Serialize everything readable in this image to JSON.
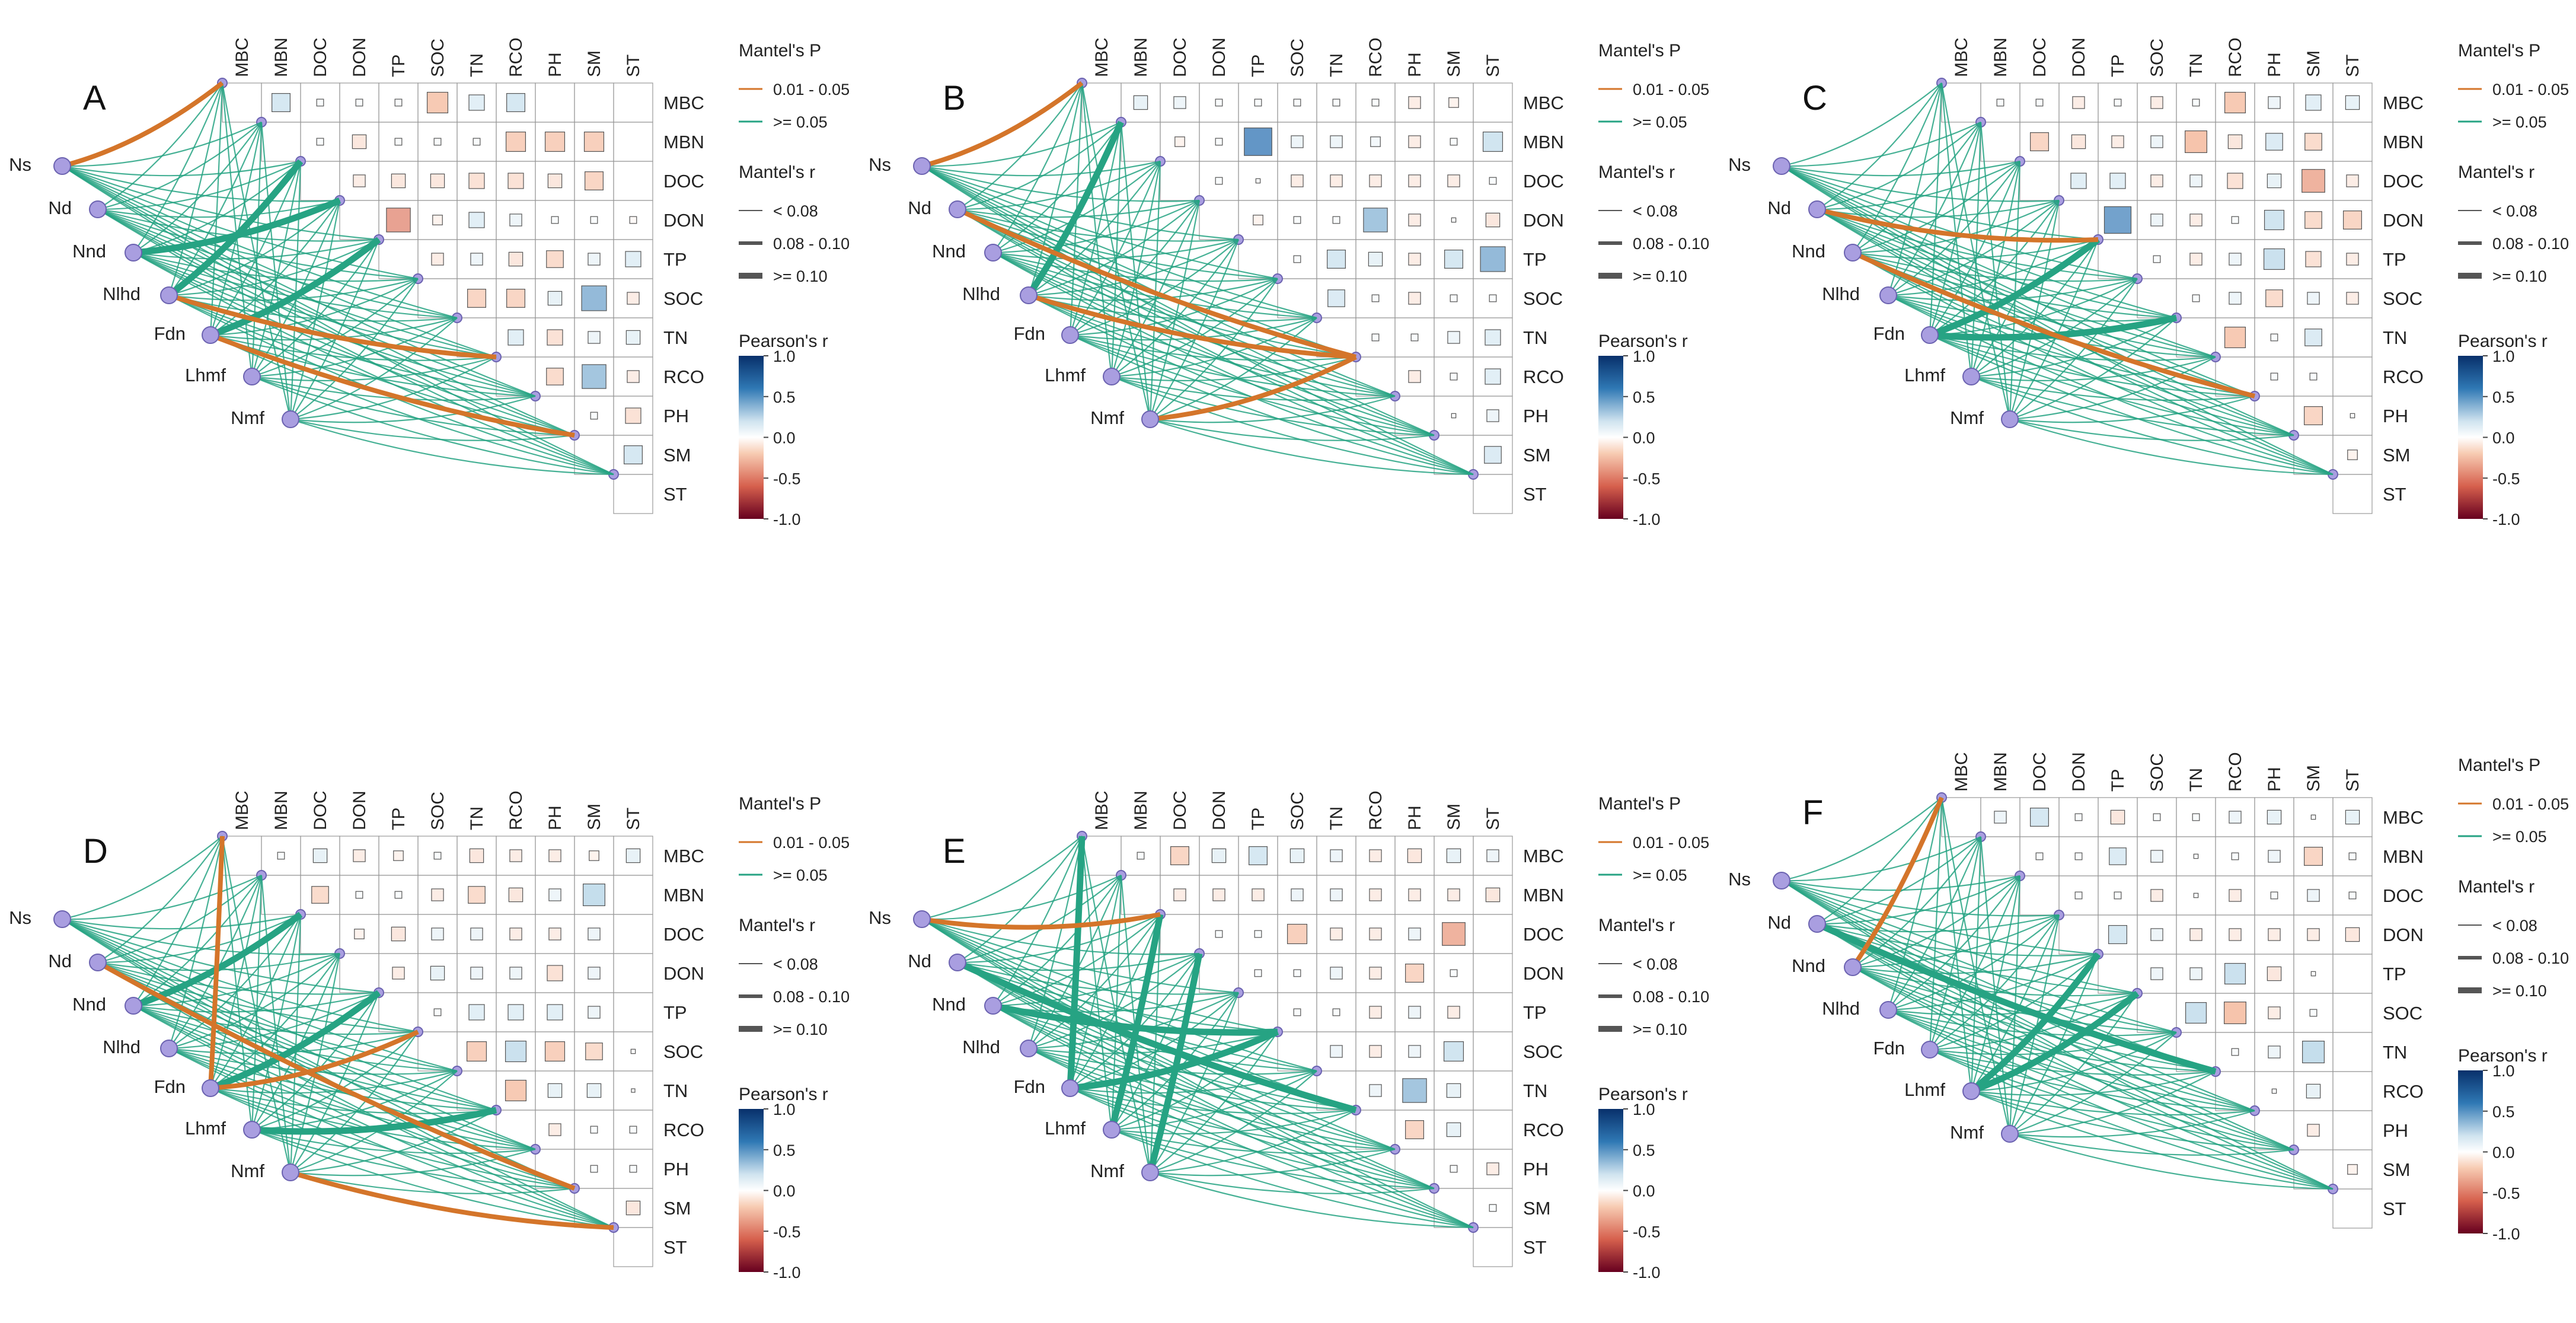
{
  "figure": {
    "type": "mantel-test-correlation-heatmap",
    "panel_count": 6
  },
  "colors": {
    "sig_low_p": "#d4752a",
    "sig_high_p": "#26a383",
    "cell_border": "#999999",
    "node_fill": "#a99ee0",
    "node_stroke": "#6b62b0",
    "text": "#222222"
  },
  "legend": {
    "mantel_p_title": "Mantel's P",
    "mantel_p_items": [
      "0.01 - 0.05",
      ">= 0.05"
    ],
    "mantel_r_title": "Mantel's r",
    "mantel_r_items": [
      "< 0.08",
      "0.08 - 0.10",
      ">= 0.10"
    ],
    "pearson_title": "Pearson's r",
    "pearson_ticks": [
      "1.0",
      "0.5",
      "0.0",
      "-0.5",
      "-1.0"
    ]
  },
  "chart_data": [
    {
      "type": "heatmap",
      "panel": "A",
      "variables": [
        "MBC",
        "MBN",
        "DOC",
        "DON",
        "TP",
        "SOC",
        "TN",
        "RCO",
        "PH",
        "SM",
        "ST"
      ],
      "groups": [
        "Ns",
        "Nd",
        "Nnd",
        "Nlhd",
        "Fdn",
        "Lhmf",
        "Nmf"
      ],
      "mantel_p_range_legend": [
        "0.01 - 0.05",
        ">= 0.05"
      ],
      "mantel_r_range_legend": [
        "< 0.08",
        "0.08 - 0.10",
        ">= 0.10"
      ],
      "pearson_range": [
        -1.0,
        1.0
      ],
      "pearson_matrix": [
        [
          0.35,
          0.05,
          0.05,
          0.05,
          -0.45,
          0.25,
          0.35
        ],
        [
          0.05,
          -0.2,
          0.05,
          0.05,
          0.05,
          -0.4,
          -0.4,
          -0.4
        ],
        [
          -0.15,
          -0.2,
          -0.2,
          -0.25,
          -0.25,
          -0.2,
          -0.35
        ],
        [
          -0.6,
          -0.1,
          0.25,
          0.15,
          0.05,
          0.05,
          -0.05
        ],
        [
          -0.15,
          0.15,
          -0.2,
          -0.3,
          0.15,
          0.25,
          -0.2
        ],
        [
          -0.35,
          -0.35,
          0.2,
          0.65,
          -0.15
        ],
        [
          0.25,
          -0.25,
          0.15,
          0.2
        ],
        [
          -0.3,
          0.6,
          -0.15
        ],
        [
          0.05,
          -0.25
        ],
        [
          0.35
        ],
        []
      ],
      "significant_links": [
        {
          "from": "Ns",
          "to": "MBC"
        },
        {
          "from": "Nlhd",
          "to": "RCO"
        },
        {
          "from": "Fdn",
          "to": "SM"
        }
      ],
      "thick_links": [
        {
          "from": "Nnd",
          "to": "DON"
        },
        {
          "from": "Nlhd",
          "to": "DOC"
        },
        {
          "from": "Fdn",
          "to": "TP"
        }
      ]
    },
    {
      "type": "heatmap",
      "panel": "B",
      "variables": [
        "MBC",
        "MBN",
        "DOC",
        "DON",
        "TP",
        "SOC",
        "TN",
        "RCO",
        "PH",
        "SM",
        "ST"
      ],
      "groups": [
        "Ns",
        "Nd",
        "Nnd",
        "Nlhd",
        "Fdn",
        "Lhmf",
        "Nmf"
      ],
      "mantel_p_range_legend": [
        "0.01 - 0.05",
        ">= 0.05"
      ],
      "mantel_r_range_legend": [
        "< 0.08",
        "0.08 - 0.10",
        ">= 0.10"
      ],
      "pearson_range": [
        -1.0,
        1.0
      ],
      "pearson_matrix": [
        [
          0.2,
          0.15,
          0.05,
          0.05,
          0.05,
          0.05,
          0.05,
          -0.15,
          -0.1
        ],
        [
          -0.1,
          0.05,
          0.8,
          0.15,
          0.15,
          0.1,
          -0.15,
          0.05,
          0.4
        ],
        [
          0.05,
          0.02,
          -0.15,
          -0.15,
          -0.15,
          -0.15,
          -0.15,
          0.05
        ],
        [
          -0.1,
          0.05,
          0.05,
          0.6,
          -0.15,
          0.02,
          -0.2
        ],
        [
          0.05,
          0.35,
          0.2,
          -0.15,
          0.35,
          0.65
        ],
        [
          0.3,
          0.05,
          -0.15,
          0.05,
          0.05
        ],
        [
          0.05,
          0.05,
          0.15,
          0.25
        ],
        [
          -0.15,
          0.05,
          0.25
        ],
        [
          0.02,
          0.15
        ],
        [
          0.3
        ],
        []
      ],
      "significant_links": [
        {
          "from": "Ns",
          "to": "MBC"
        },
        {
          "from": "Nd",
          "to": "RCO"
        },
        {
          "from": "Nlhd",
          "to": "RCO"
        },
        {
          "from": "Nmf",
          "to": "RCO"
        }
      ],
      "thick_links": [
        {
          "from": "Nlhd",
          "to": "MBN"
        }
      ]
    },
    {
      "type": "heatmap",
      "panel": "C",
      "variables": [
        "MBC",
        "MBN",
        "DOC",
        "DON",
        "TP",
        "SOC",
        "TN",
        "RCO",
        "PH",
        "SM",
        "ST"
      ],
      "groups": [
        "Ns",
        "Nd",
        "Nnd",
        "Nlhd",
        "Fdn",
        "Lhmf",
        "Nmf"
      ],
      "mantel_p_range_legend": [
        "0.01 - 0.05",
        ">= 0.05"
      ],
      "mantel_r_range_legend": [
        "< 0.08",
        "0.08 - 0.10",
        ">= 0.10"
      ],
      "pearson_range": [
        -1.0,
        1.0
      ],
      "pearson_matrix": [
        [
          0.05,
          0.05,
          -0.15,
          0.05,
          -0.15,
          0.05,
          -0.45,
          0.15,
          0.25,
          0.2
        ],
        [
          -0.35,
          -0.2,
          -0.15,
          0.15,
          -0.5,
          -0.2,
          0.3,
          -0.3
        ],
        [
          0.25,
          0.25,
          -0.15,
          0.15,
          -0.25,
          0.2,
          -0.55,
          -0.15
        ],
        [
          0.75,
          0.15,
          -0.15,
          0.05,
          0.4,
          -0.3,
          -0.35
        ],
        [
          0.05,
          -0.15,
          0.15,
          0.45,
          -0.25,
          -0.15
        ],
        [
          0.05,
          0.15,
          -0.3,
          0.15,
          -0.15
        ],
        [
          -0.45,
          0.05,
          0.3
        ],
        [
          0.05,
          0.05
        ],
        [
          -0.35,
          0.02
        ],
        [
          -0.1
        ],
        []
      ],
      "significant_links": [
        {
          "from": "Nd",
          "to": "TP"
        },
        {
          "from": "Nnd",
          "to": "PH"
        }
      ],
      "thick_links": [
        {
          "from": "Fdn",
          "to": "TP"
        },
        {
          "from": "Fdn",
          "to": "TN"
        }
      ]
    },
    {
      "type": "heatmap",
      "panel": "D",
      "variables": [
        "MBC",
        "MBN",
        "DOC",
        "DON",
        "TP",
        "SOC",
        "TN",
        "RCO",
        "PH",
        "SM",
        "ST"
      ],
      "groups": [
        "Ns",
        "Nd",
        "Nnd",
        "Nlhd",
        "Fdn",
        "Lhmf",
        "Nmf"
      ],
      "mantel_p_range_legend": [
        "0.01 - 0.05",
        ">= 0.05"
      ],
      "mantel_r_range_legend": [
        "< 0.08",
        "0.08 - 0.10",
        ">= 0.10"
      ],
      "pearson_range": [
        -1.0,
        1.0
      ],
      "pearson_matrix": [
        [
          0.05,
          0.2,
          -0.15,
          -0.1,
          0.05,
          -0.2,
          -0.15,
          -0.15,
          -0.1,
          0.2
        ],
        [
          -0.3,
          0.05,
          0.05,
          -0.15,
          -0.3,
          -0.2,
          0.15,
          0.5
        ],
        [
          -0.1,
          -0.2,
          0.15,
          0.15,
          -0.15,
          -0.15,
          0.15
        ],
        [
          -0.15,
          0.2,
          0.15,
          0.15,
          -0.25,
          0.15
        ],
        [
          0.05,
          0.25,
          0.25,
          0.25,
          0.15
        ],
        [
          -0.4,
          0.45,
          -0.4,
          -0.3,
          0.02
        ],
        [
          -0.45,
          0.2,
          0.2,
          0.0
        ],
        [
          -0.15,
          0.05,
          0.05
        ],
        [
          0.05,
          0.05
        ],
        [
          -0.2
        ],
        []
      ],
      "significant_links": [
        {
          "from": "Nd",
          "to": "SM"
        },
        {
          "from": "Fdn",
          "to": "MBC"
        },
        {
          "from": "Fdn",
          "to": "SOC"
        },
        {
          "from": "Nmf",
          "to": "ST"
        }
      ],
      "thick_links": [
        {
          "from": "Nnd",
          "to": "DOC"
        },
        {
          "from": "Fdn",
          "to": "TP"
        },
        {
          "from": "Lhmf",
          "to": "RCO"
        }
      ]
    },
    {
      "type": "heatmap",
      "panel": "E",
      "variables": [
        "MBC",
        "MBN",
        "DOC",
        "DON",
        "TP",
        "SOC",
        "TN",
        "RCO",
        "PH",
        "SM",
        "ST"
      ],
      "groups": [
        "Ns",
        "Nd",
        "Nnd",
        "Nlhd",
        "Fdn",
        "Lhmf",
        "Nmf"
      ],
      "mantel_p_range_legend": [
        "0.01 - 0.05",
        ">= 0.05"
      ],
      "mantel_r_range_legend": [
        "< 0.08",
        "0.08 - 0.10",
        ">= 0.10"
      ],
      "pearson_range": [
        -1.0,
        1.0
      ],
      "pearson_matrix": [
        [
          0.05,
          -0.35,
          0.2,
          0.35,
          0.2,
          0.15,
          -0.15,
          -0.2,
          0.2,
          0.15
        ],
        [
          -0.15,
          -0.15,
          -0.15,
          0.15,
          0.15,
          -0.15,
          -0.15,
          -0.15,
          -0.2
        ],
        [
          0.05,
          0.05,
          -0.4,
          -0.15,
          -0.15,
          0.15,
          -0.55
        ],
        [
          0.05,
          0.05,
          0.15,
          -0.15,
          -0.35,
          0.05
        ],
        [
          0.05,
          0.05,
          -0.15,
          0.15,
          -0.15
        ],
        [
          0.15,
          -0.15,
          0.15,
          0.4
        ],
        [
          0.15,
          0.6,
          0.2
        ],
        [
          -0.35,
          0.2
        ],
        [
          0.05,
          -0.15
        ],
        [
          0.05
        ],
        []
      ],
      "significant_links": [
        {
          "from": "Ns",
          "to": "DOC"
        }
      ],
      "thick_links": [
        {
          "from": "Fdn",
          "to": "MBC"
        },
        {
          "from": "Nnd",
          "to": "SOC"
        },
        {
          "from": "Lhmf",
          "to": "DOC"
        },
        {
          "from": "Nd",
          "to": "RCO"
        },
        {
          "from": "Nmf",
          "to": "DON"
        },
        {
          "from": "Fdn",
          "to": "SOC"
        }
      ]
    },
    {
      "type": "heatmap",
      "panel": "F",
      "variables": [
        "MBC",
        "MBN",
        "DOC",
        "DON",
        "TP",
        "SOC",
        "TN",
        "RCO",
        "PH",
        "SM",
        "ST"
      ],
      "groups": [
        "Ns",
        "Nd",
        "Nnd",
        "Nlhd",
        "Fdn",
        "Lhmf",
        "Nmf"
      ],
      "mantel_p_range_legend": [
        "0.01 - 0.05",
        ">= 0.05"
      ],
      "mantel_r_range_legend": [
        "< 0.08",
        "0.08 - 0.10",
        ">= 0.10"
      ],
      "pearson_range": [
        -1.0,
        1.0
      ],
      "pearson_matrix": [
        [
          0.15,
          0.35,
          0.05,
          -0.2,
          0.05,
          0.05,
          0.15,
          0.2,
          0.02,
          0.2
        ],
        [
          0.05,
          0.05,
          0.3,
          0.15,
          0.02,
          0.05,
          0.15,
          -0.35,
          0.05
        ],
        [
          0.05,
          0.05,
          -0.15,
          0.02,
          -0.15,
          0.05,
          0.15,
          0.05
        ],
        [
          0.35,
          0.15,
          -0.15,
          -0.15,
          -0.15,
          -0.15,
          -0.2
        ],
        [
          0.15,
          0.15,
          0.45,
          -0.2,
          0.02
        ],
        [
          0.45,
          -0.5,
          -0.15,
          0.05
        ],
        [
          0.05,
          0.15,
          0.5
        ],
        [
          0.02,
          0.2
        ],
        [
          -0.15
        ],
        [
          -0.1
        ],
        []
      ],
      "significant_links": [
        {
          "from": "Nnd",
          "to": "MBC"
        }
      ],
      "thick_links": [
        {
          "from": "Nd",
          "to": "RCO"
        },
        {
          "from": "Lhmf",
          "to": "SOC"
        },
        {
          "from": "Lhmf",
          "to": "TP"
        }
      ]
    }
  ]
}
